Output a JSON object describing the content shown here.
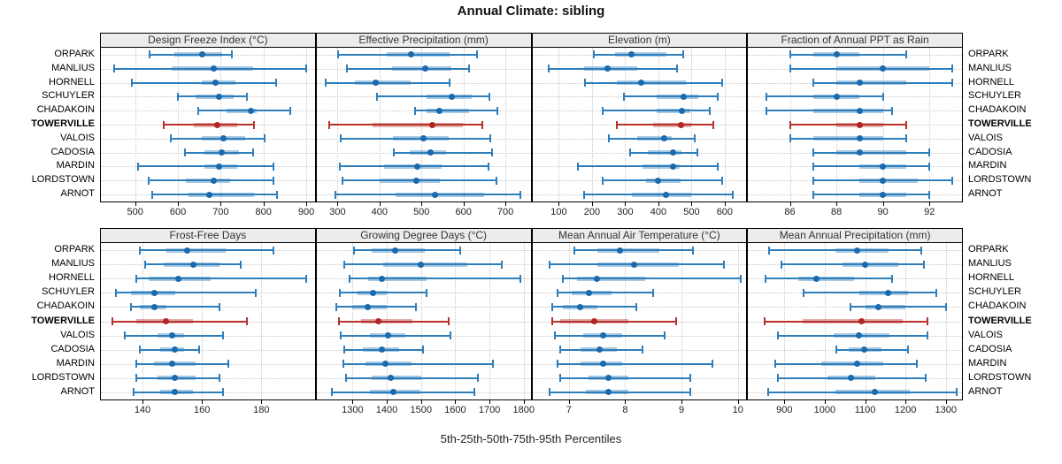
{
  "title": "Annual Climate: sibling",
  "caption": "5th-25th-50th-75th-95th Percentiles",
  "sites": [
    "ORPARK",
    "MANLIUS",
    "HORNELL",
    "SCHUYLER",
    "CHADAKOIN",
    "TOWERVILLE",
    "VALOIS",
    "CADOSIA",
    "MARDIN",
    "LORDSTOWN",
    "ARNOT"
  ],
  "highlight_site": "TOWERVILLE",
  "colors": {
    "series_blue": "#2e7ebc",
    "series_blue_dot": "#1a6aad",
    "series_blue_band": "rgba(46,126,188,0.42)",
    "highlight_red": "#b8312b",
    "highlight_red_dot": "#b02520",
    "highlight_red_band": "rgba(184,49,43,0.40)",
    "strip_bg": "#ececec",
    "grid": "#c8c8c8",
    "border": "#000000"
  },
  "chart_data": {
    "type": "dotplot",
    "subtype": "percentile-whisker-trellis",
    "percentiles": [
      5,
      25,
      50,
      75,
      95
    ],
    "row_order": "sites top-to-bottom, values are [p5,p25,p50,p75,p95]",
    "grid": true,
    "panels": [
      {
        "title": "Design Freeze Index (°C)",
        "xlim": [
          420,
          920
        ],
        "ticks": [
          500,
          600,
          700,
          800,
          900
        ],
        "rows": [
          [
            533,
            592,
            657,
            703,
            726
          ],
          [
            452,
            585,
            683,
            776,
            900
          ],
          [
            492,
            655,
            688,
            735,
            830
          ],
          [
            599,
            641,
            697,
            731,
            761
          ],
          [
            647,
            714,
            770,
            785,
            863
          ],
          [
            567,
            637,
            692,
            738,
            778
          ],
          [
            584,
            655,
            707,
            757,
            803
          ],
          [
            617,
            662,
            702,
            742,
            776
          ],
          [
            506,
            662,
            697,
            738,
            824
          ],
          [
            532,
            619,
            683,
            721,
            824
          ],
          [
            540,
            624,
            674,
            778,
            832
          ]
        ]
      },
      {
        "title": "Effective Precipitation (mm)",
        "xlim": [
          250,
          760
        ],
        "ticks": [
          300,
          400,
          500,
          600,
          700
        ],
        "rows": [
          [
            302,
            417,
            476,
            568,
            633
          ],
          [
            322,
            429,
            508,
            571,
            613
          ],
          [
            272,
            341,
            391,
            474,
            566
          ],
          [
            394,
            512,
            573,
            620,
            662
          ],
          [
            485,
            512,
            542,
            613,
            681
          ],
          [
            281,
            384,
            526,
            599,
            645
          ],
          [
            308,
            431,
            505,
            565,
            665
          ],
          [
            433,
            473,
            522,
            558,
            668
          ],
          [
            305,
            410,
            490,
            547,
            660
          ],
          [
            312,
            400,
            487,
            544,
            678
          ],
          [
            294,
            438,
            533,
            650,
            735
          ]
        ]
      },
      {
        "title": "Elevation (m)",
        "xlim": [
          20,
          665
        ],
        "ticks": [
          100,
          200,
          300,
          400,
          500,
          600
        ],
        "rows": [
          [
            205,
            270,
            320,
            425,
            475
          ],
          [
            70,
            177,
            247,
            335,
            455
          ],
          [
            179,
            275,
            347,
            484,
            593
          ],
          [
            297,
            396,
            477,
            519,
            578
          ],
          [
            232,
            394,
            470,
            495,
            556
          ],
          [
            274,
            385,
            468,
            499,
            565
          ],
          [
            251,
            337,
            418,
            440,
            510
          ],
          [
            315,
            368,
            445,
            470,
            517
          ],
          [
            157,
            353,
            445,
            464,
            578
          ],
          [
            232,
            363,
            400,
            467,
            591
          ],
          [
            177,
            319,
            423,
            499,
            625
          ]
        ]
      },
      {
        "title": "Fraction of Annual PPT as Rain",
        "xlim": [
          84.2,
          93.4
        ],
        "ticks": [
          86,
          88,
          90,
          92
        ],
        "rows": [
          [
            86,
            87,
            88,
            89,
            91
          ],
          [
            86,
            88,
            90,
            92,
            93
          ],
          [
            87,
            88,
            89,
            91,
            93
          ],
          [
            85,
            87,
            88,
            89,
            90
          ],
          [
            85,
            87,
            89,
            90,
            90.4
          ],
          [
            86,
            88,
            89,
            90,
            91
          ],
          [
            86,
            87,
            89,
            90,
            91
          ],
          [
            87,
            88,
            89,
            91,
            92
          ],
          [
            87,
            89,
            90,
            91,
            92
          ],
          [
            87,
            89,
            90,
            91.5,
            93
          ],
          [
            87,
            89,
            90,
            91,
            92
          ]
        ]
      },
      {
        "title": "Frost-Free Days",
        "xlim": [
          126,
          198
        ],
        "ticks": [
          140,
          160,
          180
        ],
        "rows": [
          [
            139,
            148,
            155,
            168,
            184
          ],
          [
            141,
            147,
            157,
            166,
            173
          ],
          [
            138,
            142,
            152,
            163,
            195
          ],
          [
            131,
            136,
            144,
            151,
            178
          ],
          [
            136,
            139,
            144,
            148,
            166
          ],
          [
            130,
            138,
            148,
            157,
            175
          ],
          [
            134,
            145,
            150,
            154,
            167
          ],
          [
            139,
            146,
            151,
            154,
            159
          ],
          [
            138,
            144,
            150,
            158,
            169
          ],
          [
            138,
            145,
            151,
            158,
            166
          ],
          [
            137,
            146,
            151,
            157,
            167
          ]
        ]
      },
      {
        "title": "Growing Degree Days (°C)",
        "xlim": [
          1195,
          1820
        ],
        "ticks": [
          1300,
          1400,
          1500,
          1600,
          1700,
          1800
        ],
        "rows": [
          [
            1305,
            1355,
            1425,
            1510,
            1615
          ],
          [
            1275,
            1390,
            1500,
            1635,
            1735
          ],
          [
            1290,
            1345,
            1385,
            1515,
            1790
          ],
          [
            1263,
            1315,
            1360,
            1400,
            1515
          ],
          [
            1253,
            1300,
            1345,
            1400,
            1485
          ],
          [
            1260,
            1325,
            1375,
            1475,
            1580
          ],
          [
            1265,
            1350,
            1405,
            1455,
            1585
          ],
          [
            1275,
            1330,
            1385,
            1435,
            1505
          ],
          [
            1273,
            1337,
            1395,
            1472,
            1710
          ],
          [
            1280,
            1356,
            1412,
            1500,
            1665
          ],
          [
            1240,
            1350,
            1420,
            1498,
            1655
          ]
        ]
      },
      {
        "title": "Mean Annual Air Temperature (°C)",
        "xlim": [
          6.35,
          10.15
        ],
        "ticks": [
          7,
          8,
          9,
          10
        ],
        "rows": [
          [
            7.1,
            7.5,
            7.9,
            8.6,
            9.2
          ],
          [
            6.65,
            7.5,
            8.15,
            8.95,
            9.75
          ],
          [
            6.9,
            7.15,
            7.5,
            8.35,
            10.05
          ],
          [
            6.8,
            7.05,
            7.35,
            7.75,
            8.5
          ],
          [
            6.7,
            6.9,
            7.2,
            7.5,
            8.2
          ],
          [
            6.7,
            6.85,
            7.45,
            8.05,
            8.9
          ],
          [
            6.75,
            7.25,
            7.6,
            7.95,
            8.7
          ],
          [
            6.85,
            7.2,
            7.55,
            7.85,
            8.3
          ],
          [
            6.8,
            7.2,
            7.6,
            7.95,
            9.55
          ],
          [
            6.85,
            7.35,
            7.7,
            8.05,
            9.15
          ],
          [
            6.65,
            7.3,
            7.7,
            8.05,
            9.15
          ]
        ]
      },
      {
        "title": "Mean Annual Precipitation (mm)",
        "xlim": [
          810,
          1340
        ],
        "ticks": [
          900,
          1000,
          1100,
          1200,
          1300
        ],
        "rows": [
          [
            862,
            1027,
            1080,
            1157,
            1240
          ],
          [
            893,
            1043,
            1100,
            1183,
            1246
          ],
          [
            853,
            935,
            980,
            1072,
            1167
          ],
          [
            948,
            1085,
            1157,
            1207,
            1276
          ],
          [
            1064,
            1102,
            1133,
            1200,
            1301
          ],
          [
            852,
            945,
            1091,
            1194,
            1254
          ],
          [
            884,
            1023,
            1085,
            1161,
            1254
          ],
          [
            1029,
            1059,
            1097,
            1141,
            1207
          ],
          [
            877,
            991,
            1081,
            1145,
            1228
          ],
          [
            884,
            1007,
            1065,
            1125,
            1251
          ],
          [
            859,
            1027,
            1125,
            1210,
            1326
          ]
        ]
      }
    ]
  }
}
